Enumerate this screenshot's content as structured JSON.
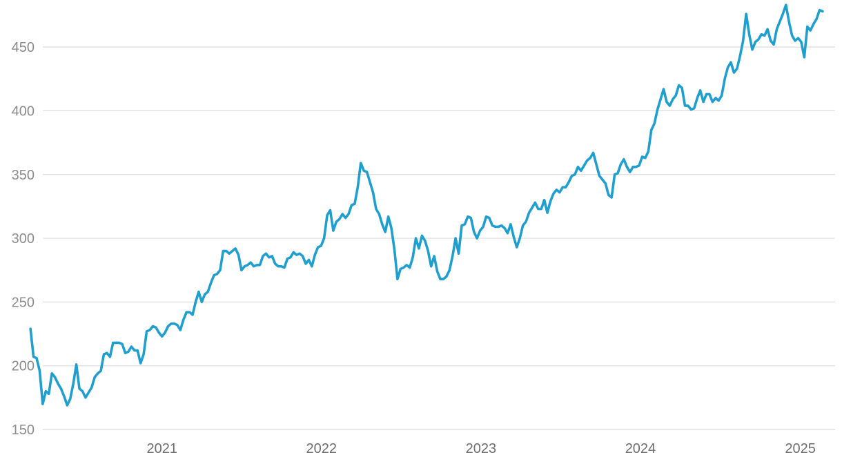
{
  "chart_data": {
    "type": "line",
    "title": "",
    "xlabel": "",
    "ylabel": "",
    "ylim": [
      150,
      480
    ],
    "yticks": [
      150,
      200,
      250,
      300,
      350,
      400,
      450
    ],
    "xticks": [
      "2021",
      "2022",
      "2023",
      "2024",
      "2025"
    ],
    "grid": "horizontal",
    "line_color": "#1f9fcf",
    "series": [
      {
        "x_start": "2020-03-06",
        "frequency": "weekly",
        "values": [
          229,
          207,
          206,
          196,
          170,
          180,
          178,
          194,
          191,
          186,
          182,
          176,
          169,
          174,
          186,
          201,
          182,
          180,
          175,
          179,
          183,
          191,
          194,
          196,
          209,
          210,
          207,
          218,
          218,
          218,
          217,
          210,
          211,
          215,
          212,
          212,
          202,
          209,
          227,
          228,
          231,
          230,
          226,
          223,
          226,
          231,
          233,
          233,
          232,
          228,
          236,
          242,
          242,
          240,
          250,
          258,
          250,
          256,
          258,
          265,
          271,
          272,
          275,
          290,
          290,
          288,
          290,
          292,
          287,
          275,
          278,
          279,
          281,
          278,
          279,
          279,
          286,
          288,
          285,
          286,
          280,
          278,
          278,
          277,
          284,
          285,
          289,
          287,
          288,
          286,
          280,
          283,
          278,
          287,
          293,
          294,
          300,
          318,
          322,
          306,
          313,
          315,
          319,
          316,
          319,
          326,
          327,
          340,
          359,
          353,
          352,
          344,
          336,
          323,
          319,
          311,
          305,
          317,
          308,
          291,
          268,
          276,
          277,
          279,
          277,
          285,
          300,
          292,
          302,
          298,
          290,
          278,
          286,
          274,
          268,
          268,
          270,
          275,
          286,
          300,
          288,
          310,
          311,
          317,
          316,
          305,
          300,
          306,
          309,
          317,
          316,
          310,
          309,
          309,
          310,
          308,
          304,
          311,
          301,
          293,
          300,
          310,
          313,
          320,
          324,
          328,
          323,
          323,
          330,
          320,
          329,
          335,
          338,
          336,
          340,
          340,
          344,
          349,
          350,
          356,
          353,
          357,
          361,
          363,
          367,
          358,
          349,
          346,
          343,
          334,
          332,
          350,
          351,
          358,
          362,
          356,
          352,
          356,
          356,
          357,
          364,
          363,
          368,
          385,
          390,
          401,
          409,
          417,
          407,
          404,
          409,
          412,
          420,
          418,
          404,
          404,
          401,
          402,
          410,
          416,
          407,
          413,
          413,
          407,
          410,
          408,
          412,
          425,
          434,
          438,
          430,
          433,
          443,
          455,
          476,
          460,
          448,
          454,
          456,
          460,
          459,
          464,
          455,
          452,
          464,
          470,
          476,
          483,
          470,
          459,
          455,
          457,
          454,
          442,
          466,
          463,
          468,
          472,
          479,
          478
        ]
      }
    ]
  }
}
